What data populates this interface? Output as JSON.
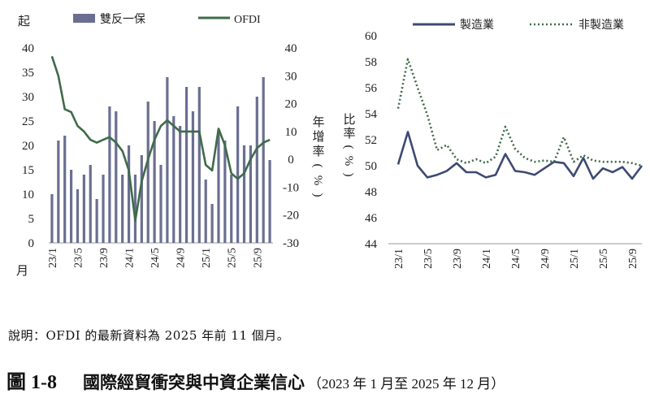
{
  "chart_data": [
    {
      "type": "bar+line",
      "title": "",
      "y_left_label": "起",
      "x_unit_label": "月",
      "y_right_label": "年增率(%)",
      "ylim_left": [
        0,
        40
      ],
      "ylim_right": [
        -30,
        40
      ],
      "yticks_left": [
        "0",
        "5",
        "10",
        "15",
        "20",
        "25",
        "30",
        "35",
        "40"
      ],
      "yticks_right": [
        "-30",
        "-20",
        "-10",
        "0",
        "10",
        "20",
        "30",
        "40"
      ],
      "xtick_labels": [
        "23/1",
        "23/5",
        "23/9",
        "24/1",
        "24/5",
        "24/9",
        "25/1",
        "25/5",
        "25/9"
      ],
      "legend": [
        "雙反一保",
        "OFDI"
      ],
      "bar_color": "#6a6f92",
      "line_color": "#3f6b49",
      "series": [
        {
          "name": "雙反一保",
          "kind": "bar",
          "axis": "left",
          "values": [
            10,
            21,
            22,
            15,
            11,
            14,
            16,
            9,
            14,
            28,
            27,
            14,
            20,
            14,
            18,
            29,
            25,
            16,
            34,
            26,
            24,
            32,
            27,
            32,
            13,
            8,
            23,
            21,
            14,
            28,
            20,
            20,
            30,
            34,
            17
          ]
        },
        {
          "name": "OFDI",
          "kind": "line",
          "axis": "right",
          "values": [
            37,
            30,
            18,
            17,
            12,
            10,
            7,
            6,
            7,
            8,
            6,
            3,
            -4,
            -22,
            -8,
            0,
            7,
            12,
            14,
            12,
            10,
            10,
            10,
            10,
            -2,
            -4,
            11,
            5,
            -5,
            -7,
            -5,
            0,
            4,
            6,
            7
          ]
        }
      ]
    },
    {
      "type": "line",
      "title": "",
      "ylabel": "比率(%)",
      "ylim": [
        44,
        60
      ],
      "yticks": [
        "44",
        "46",
        "48",
        "50",
        "52",
        "54",
        "56",
        "58",
        "60"
      ],
      "xtick_labels": [
        "23/1",
        "23/5",
        "23/9",
        "24/1",
        "24/5",
        "24/9",
        "25/1",
        "25/5",
        "25/9"
      ],
      "legend": [
        "製造業",
        "非製造業"
      ],
      "series_colors": [
        "#3d4a72",
        "#3f6b49"
      ],
      "series": [
        {
          "name": "製造業",
          "style": "solid",
          "values": [
            50.1,
            52.6,
            50.0,
            49.1,
            49.3,
            49.6,
            50.2,
            49.5,
            49.5,
            49.1,
            49.3,
            50.9,
            49.6,
            49.5,
            49.3,
            49.8,
            50.3,
            50.2,
            49.2,
            50.6,
            49.0,
            49.8,
            49.5,
            49.9,
            49.0,
            50.0
          ]
        },
        {
          "name": "非製造業",
          "style": "dotted",
          "values": [
            54.4,
            58.2,
            56.0,
            53.9,
            51.2,
            51.6,
            50.5,
            50.2,
            50.5,
            50.2,
            50.7,
            53.0,
            51.3,
            50.6,
            50.3,
            50.4,
            50.3,
            52.2,
            50.3,
            50.8,
            50.4,
            50.3,
            50.3,
            50.3,
            50.2,
            50.0
          ]
        }
      ]
    }
  ],
  "footnote": "說明：OFDI 的最新資料為 2025 年前 11 個月。",
  "figure": {
    "number": "圖 1-8",
    "title": "國際經貿衝突與中資企業信心",
    "subtitle": "（2023 年 1 月至 2025 年 12 月）"
  }
}
